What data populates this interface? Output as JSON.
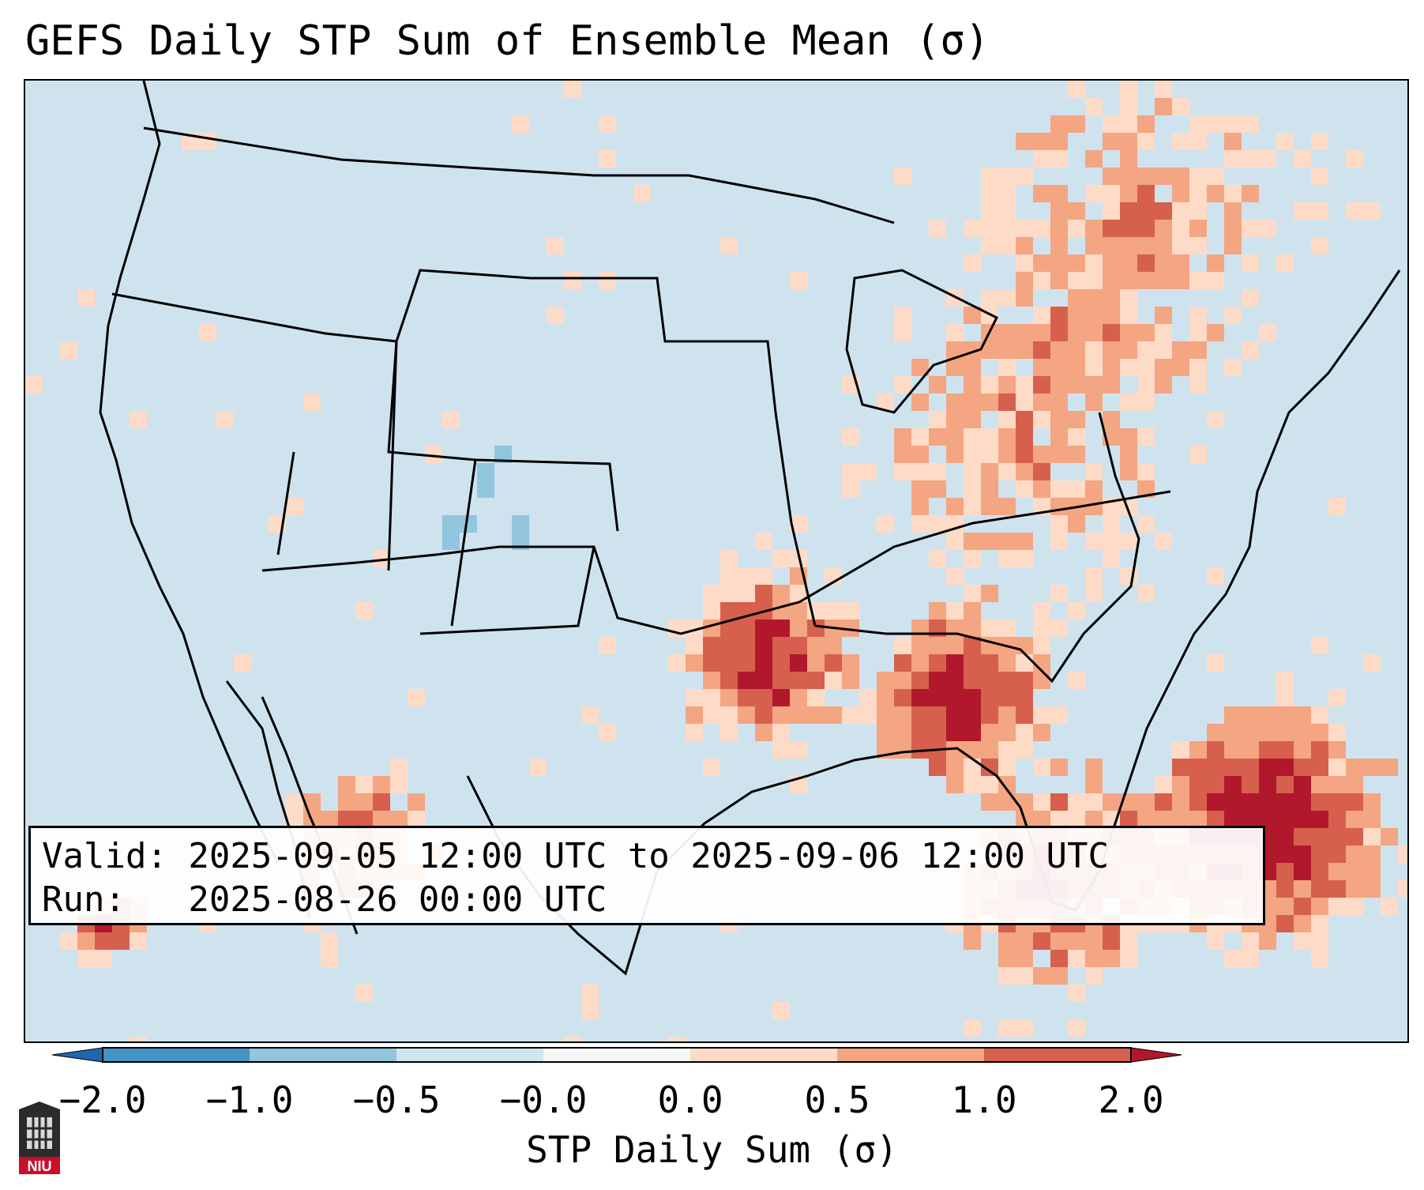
{
  "title": "GEFS Daily STP Sum of Ensemble Mean (σ)",
  "valid_line": "Valid: 2025-09-05 12:00 UTC to 2025-09-06 12:00 UTC",
  "run_line": "Run:   2025-08-26 00:00 UTC",
  "colorbar": {
    "label": "STP Daily Sum (σ)",
    "ticks": [
      "−2.0",
      "−1.0",
      "−0.5",
      "−0.0",
      "0.0",
      "0.5",
      "1.0",
      "2.0"
    ],
    "colors": [
      "#2166ac",
      "#4393c3",
      "#92c5de",
      "#d1e5f0",
      "#f7f7f7",
      "#fddbc7",
      "#f4a582",
      "#d6604d",
      "#b2182b"
    ]
  },
  "logo_text": "NIU",
  "map_regions": [
    {
      "name": "Southern Plains / Oklahoma",
      "level": "high"
    },
    {
      "name": "Lower Mississippi Valley / Tennessee Valley",
      "level": "high"
    },
    {
      "name": "Western Atlantic off Florida / Bahamas",
      "level": "high"
    },
    {
      "name": "Gulf Coast",
      "level": "moderate"
    },
    {
      "name": "Great Lakes / Northeast",
      "level": "low"
    },
    {
      "name": "Central Rockies / Colorado",
      "level": "slightly negative"
    }
  ]
}
